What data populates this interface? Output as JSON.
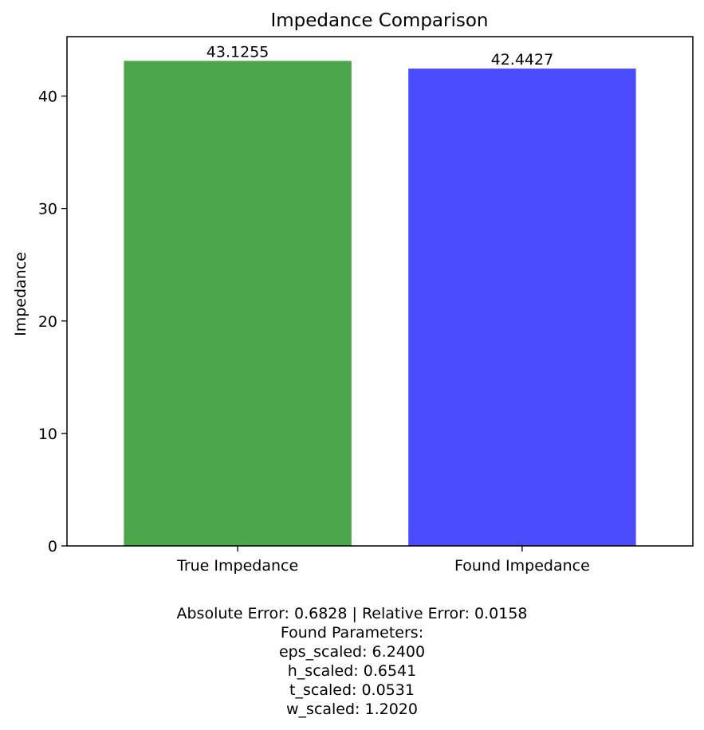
{
  "chart_data": {
    "type": "bar",
    "title": "Impedance Comparison",
    "xlabel": "",
    "ylabel": "Impedance",
    "categories": [
      "True Impedance",
      "Found Impedance"
    ],
    "values": [
      43.1255,
      42.4427
    ],
    "value_labels": [
      "43.1255",
      "42.4427"
    ],
    "colors": [
      "#4ca64c",
      "#4c4cff"
    ],
    "ylim": [
      0,
      45.28
    ],
    "yticks": [
      0,
      10,
      20,
      30,
      40
    ],
    "grid": false,
    "legend": "none"
  },
  "footer": {
    "lines": [
      "Absolute Error: 0.6828 | Relative Error: 0.0158",
      "Found Parameters:",
      "eps_scaled: 6.2400",
      "h_scaled: 0.6541",
      "t_scaled: 0.0531",
      "w_scaled: 1.2020"
    ]
  }
}
